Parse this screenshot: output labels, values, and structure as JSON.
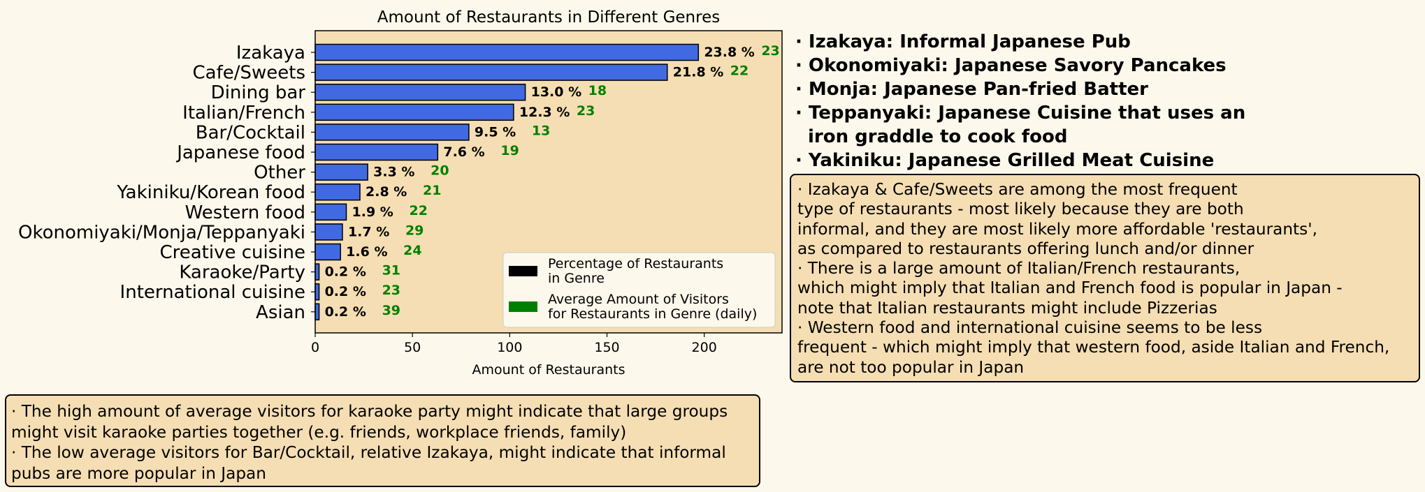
{
  "chart_data": {
    "type": "bar",
    "orientation": "horizontal",
    "title": "Amount of Restaurants in Different Genres",
    "xlabel": "Amount of Restaurants",
    "ylabel": "",
    "xlim": [
      0,
      240
    ],
    "xticks": [
      0,
      50,
      100,
      150,
      200
    ],
    "grid": false,
    "legend_position": "lower right",
    "categories": [
      "Izakaya",
      "Cafe/Sweets",
      "Dining bar",
      "Italian/French",
      "Bar/Cocktail",
      "Japanese food",
      "Other",
      "Yakiniku/Korean food",
      "Western food",
      "Okonomiyaki/Monja/Teppanyaki",
      "Creative cuisine",
      "Karaoke/Party",
      "International cuisine",
      "Asian"
    ],
    "series": [
      {
        "name": "Percentage of Restaurants in Genre",
        "values": [
          197,
          181,
          108,
          102,
          79,
          63,
          27,
          23,
          16,
          14,
          13,
          2,
          2,
          2
        ],
        "percent_labels": [
          "23.8 %",
          "21.8 %",
          "13.0 %",
          "12.3 %",
          "9.5 %",
          "7.6 %",
          "3.3 %",
          "2.8 %",
          "1.9 %",
          "1.7 %",
          "1.6 %",
          "0.2 %",
          "0.2 %",
          "0.2 %"
        ],
        "color": "#4169e1"
      },
      {
        "name": "Average Amount of Visitors for Restaurants in Genre (daily)",
        "values": [
          23,
          22,
          18,
          23,
          13,
          19,
          20,
          21,
          22,
          29,
          24,
          31,
          23,
          39
        ],
        "color": "#008000"
      }
    ],
    "legend": [
      {
        "line1": "Percentage of Restaurants",
        "line2": "in Genre",
        "color": "#000000"
      },
      {
        "line1": "Average Amount of Visitors",
        "line2": "for Restaurants in Genre (daily)",
        "color": "#008000"
      }
    ]
  },
  "glossary": [
    {
      "text": "· Izakaya: Informal Japanese Pub"
    },
    {
      "text": "· Okonomiyaki: Japanese Savory Pancakes"
    },
    {
      "text": "· Monja: Japanese Pan-fried Batter"
    },
    {
      "text": "· Teppanyaki: Japanese Cuisine that uses an"
    },
    {
      "text": "iron graddle to cook food"
    },
    {
      "text": "· Yakiniku: Japanese Grilled Meat Cuisine"
    }
  ],
  "right_notes": [
    "· Izakaya & Cafe/Sweets are among the most frequent",
    "type of restaurants - most likely because they are both",
    "informal, and they are most likely more affordable 'restaurants',",
    "as compared to restaurants offering lunch and/or dinner",
    "· There is a large amount of Italian/French restaurants,",
    "which might imply that Italian and French food is popular in Japan -",
    "note that Italian restaurants might include Pizzerias",
    "· Western food and international cuisine seems to be less",
    "frequent - which might imply that western food, aside Italian and French,",
    "are not too popular in Japan"
  ],
  "bottom_notes": [
    "· The high amount of average visitors for karaoke party might indicate that large groups",
    "might visit karaoke parties together (e.g. friends, workplace friends, family)",
    "· The low average visitors for Bar/Cocktail, relative Izakaya, might indicate that informal",
    "pubs are more popular in Japan"
  ]
}
